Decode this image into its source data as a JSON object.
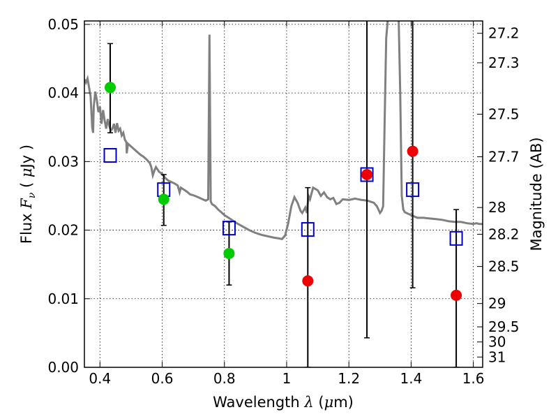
{
  "chart_data": {
    "type": "scatter",
    "xlabel": "Wavelength  λ (μm)",
    "ylabel": "Flux  F_ν  ( μJy )",
    "ylabel_parts": {
      "pre": "Flux  ",
      "F": "F",
      "nu": "ν",
      "post": "  ( ",
      "mu": "μ",
      "unit": "Jy )"
    },
    "xlabel_parts": {
      "pre": "Wavelength  ",
      "lambda": "λ",
      "post": " (",
      "mu": "μ",
      "unit": "m)"
    },
    "y2label": "Magnitude (AB)",
    "xlim": [
      0.35,
      1.63
    ],
    "ylim": [
      0.0,
      0.0505
    ],
    "x_ticks": [
      "0.4",
      "0.6",
      "0.8",
      "1",
      "1.2",
      "1.4",
      "1.6"
    ],
    "x_tick_values": [
      0.4,
      0.6,
      0.8,
      1.0,
      1.2,
      1.4,
      1.6
    ],
    "y_ticks": [
      "0.00",
      "0.01",
      "0.02",
      "0.03",
      "0.04",
      "0.05"
    ],
    "y_tick_values": [
      0.0,
      0.01,
      0.02,
      0.03,
      0.04,
      0.05
    ],
    "mag_ticks": [
      {
        "label": "27.2",
        "flux": 0.0487
      },
      {
        "label": "27.3",
        "flux": 0.0444
      },
      {
        "label": "27.5",
        "flux": 0.0369
      },
      {
        "label": "27.7",
        "flux": 0.0307
      },
      {
        "label": "28",
        "flux": 0.0233
      },
      {
        "label": "28.2",
        "flux": 0.0194
      },
      {
        "label": "28.5",
        "flux": 0.0147
      },
      {
        "label": "29",
        "flux": 0.0093
      },
      {
        "label": "29.5",
        "flux": 0.0059
      },
      {
        "label": "30",
        "flux": 0.0037
      },
      {
        "label": "31",
        "flux": 0.0015
      }
    ],
    "grid": true,
    "sed_model": {
      "name": "",
      "color": "#808080",
      "points": [
        [
          0.35,
          0.042
        ],
        [
          0.355,
          0.0415
        ],
        [
          0.36,
          0.0421
        ],
        [
          0.365,
          0.0408
        ],
        [
          0.37,
          0.0395
        ],
        [
          0.375,
          0.035
        ],
        [
          0.378,
          0.0342
        ],
        [
          0.38,
          0.038
        ],
        [
          0.385,
          0.0402
        ],
        [
          0.39,
          0.039
        ],
        [
          0.395,
          0.0372
        ],
        [
          0.4,
          0.038
        ],
        [
          0.405,
          0.0355
        ],
        [
          0.41,
          0.0375
        ],
        [
          0.415,
          0.036
        ],
        [
          0.42,
          0.0348
        ],
        [
          0.425,
          0.0362
        ],
        [
          0.43,
          0.0352
        ],
        [
          0.435,
          0.0345
        ],
        [
          0.44,
          0.0348
        ],
        [
          0.445,
          0.0355
        ],
        [
          0.45,
          0.0342
        ],
        [
          0.455,
          0.0356
        ],
        [
          0.46,
          0.0345
        ],
        [
          0.465,
          0.0348
        ],
        [
          0.47,
          0.0338
        ],
        [
          0.475,
          0.0342
        ],
        [
          0.48,
          0.0332
        ],
        [
          0.485,
          0.0328
        ],
        [
          0.486,
          0.0312
        ],
        [
          0.49,
          0.0326
        ],
        [
          0.5,
          0.0322
        ],
        [
          0.51,
          0.0318
        ],
        [
          0.52,
          0.0314
        ],
        [
          0.53,
          0.031
        ],
        [
          0.54,
          0.0307
        ],
        [
          0.55,
          0.0303
        ],
        [
          0.56,
          0.0298
        ],
        [
          0.565,
          0.0292
        ],
        [
          0.57,
          0.028
        ],
        [
          0.575,
          0.0287
        ],
        [
          0.58,
          0.0292
        ],
        [
          0.59,
          0.0285
        ],
        [
          0.6,
          0.0282
        ],
        [
          0.61,
          0.0276
        ],
        [
          0.62,
          0.0272
        ],
        [
          0.63,
          0.027
        ],
        [
          0.64,
          0.0268
        ],
        [
          0.65,
          0.0265
        ],
        [
          0.656,
          0.0255
        ],
        [
          0.66,
          0.0262
        ],
        [
          0.67,
          0.0259
        ],
        [
          0.68,
          0.0256
        ],
        [
          0.69,
          0.0252
        ],
        [
          0.7,
          0.0251
        ],
        [
          0.71,
          0.0249
        ],
        [
          0.72,
          0.0247
        ],
        [
          0.73,
          0.0245
        ],
        [
          0.74,
          0.0243
        ],
        [
          0.748,
          0.0245
        ],
        [
          0.752,
          0.0485
        ],
        [
          0.756,
          0.0242
        ],
        [
          0.76,
          0.0238
        ],
        [
          0.77,
          0.0235
        ],
        [
          0.78,
          0.023
        ],
        [
          0.79,
          0.0226
        ],
        [
          0.8,
          0.0222
        ],
        [
          0.82,
          0.0216
        ],
        [
          0.84,
          0.021
        ],
        [
          0.86,
          0.0205
        ],
        [
          0.88,
          0.02
        ],
        [
          0.9,
          0.0196
        ],
        [
          0.92,
          0.0193
        ],
        [
          0.94,
          0.0191
        ],
        [
          0.96,
          0.0189
        ],
        [
          0.975,
          0.0188
        ],
        [
          0.985,
          0.0187
        ],
        [
          0.995,
          0.0192
        ],
        [
          1.005,
          0.021
        ],
        [
          1.015,
          0.0235
        ],
        [
          1.025,
          0.0248
        ],
        [
          1.035,
          0.024
        ],
        [
          1.045,
          0.0228
        ],
        [
          1.05,
          0.0225
        ],
        [
          1.06,
          0.0233
        ],
        [
          1.065,
          0.0225
        ],
        [
          1.07,
          0.025
        ],
        [
          1.075,
          0.0245
        ],
        [
          1.085,
          0.0262
        ],
        [
          1.1,
          0.0258
        ],
        [
          1.11,
          0.025
        ],
        [
          1.12,
          0.0255
        ],
        [
          1.13,
          0.0248
        ],
        [
          1.14,
          0.0245
        ],
        [
          1.15,
          0.0247
        ],
        [
          1.16,
          0.0238
        ],
        [
          1.17,
          0.024
        ],
        [
          1.18,
          0.0245
        ],
        [
          1.2,
          0.0244
        ],
        [
          1.22,
          0.0246
        ],
        [
          1.24,
          0.0244
        ],
        [
          1.26,
          0.0243
        ],
        [
          1.28,
          0.024
        ],
        [
          1.29,
          0.0235
        ],
        [
          1.295,
          0.023
        ],
        [
          1.3,
          0.0225
        ],
        [
          1.305,
          0.0228
        ],
        [
          1.31,
          0.0235
        ],
        [
          1.315,
          0.036
        ],
        [
          1.32,
          0.048
        ],
        [
          1.325,
          0.0506
        ],
        [
          1.335,
          0.0506
        ],
        [
          1.34,
          0.0506
        ],
        [
          1.348,
          0.0506
        ],
        [
          1.355,
          0.0506
        ],
        [
          1.36,
          0.0506
        ],
        [
          1.365,
          0.04
        ],
        [
          1.37,
          0.025
        ],
        [
          1.375,
          0.023
        ],
        [
          1.38,
          0.0226
        ],
        [
          1.4,
          0.0222
        ],
        [
          1.42,
          0.0218
        ],
        [
          1.44,
          0.0218
        ],
        [
          1.46,
          0.0217
        ],
        [
          1.48,
          0.0216
        ],
        [
          1.5,
          0.0215
        ],
        [
          1.52,
          0.0213
        ],
        [
          1.54,
          0.0212
        ],
        [
          1.56,
          0.0212
        ],
        [
          1.58,
          0.021
        ],
        [
          1.6,
          0.0209
        ],
        [
          1.61,
          0.021
        ],
        [
          1.62,
          0.0209
        ],
        [
          1.63,
          0.0209
        ]
      ]
    },
    "model_points": {
      "name": "",
      "color": "#0000cc",
      "x": [
        0.433,
        0.605,
        0.815,
        1.068,
        1.258,
        1.405,
        1.545
      ],
      "y": [
        0.0309,
        0.0259,
        0.0203,
        0.0201,
        0.0281,
        0.0259,
        0.0188
      ]
    },
    "detections": {
      "name": "",
      "color": "#00cc00",
      "x": [
        0.433,
        0.605,
        0.815
      ],
      "y": [
        0.0408,
        0.0245,
        0.0166
      ],
      "err_low": [
        0.0342,
        0.0207,
        0.012
      ],
      "err_high": [
        0.0472,
        0.0281,
        0.0212
      ]
    },
    "non_detections": {
      "name": "",
      "color": "#ee0000",
      "x": [
        1.068,
        1.258,
        1.405,
        1.545
      ],
      "y": [
        0.0126,
        0.0281,
        0.0315,
        0.0105
      ],
      "err_low": [
        0.0,
        0.0043,
        0.0116,
        0.0
      ],
      "err_high": [
        0.0262,
        0.0506,
        0.0506,
        0.023
      ]
    }
  }
}
